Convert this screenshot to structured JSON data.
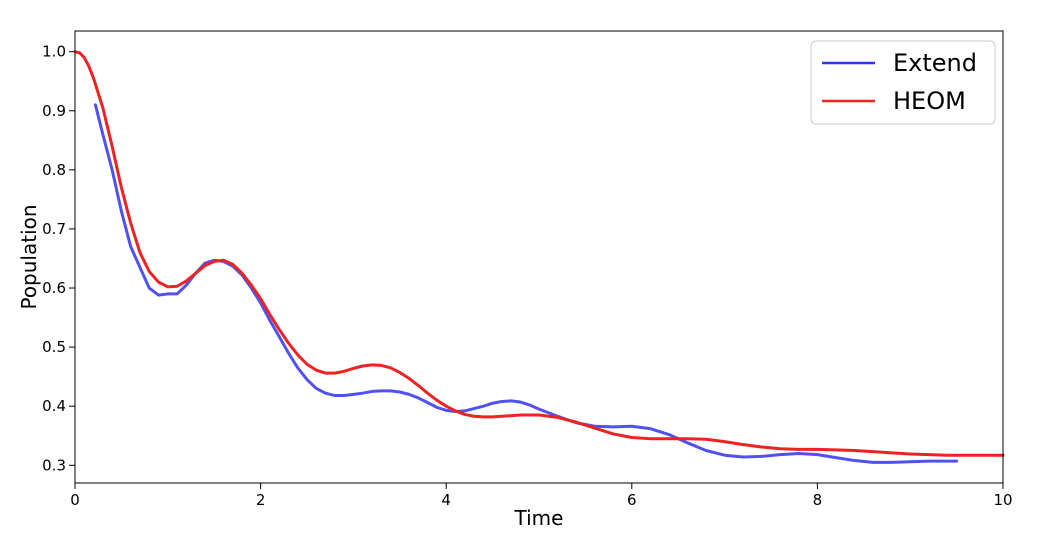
{
  "chart_data": {
    "type": "line",
    "title": "",
    "xlabel": "Time",
    "ylabel": "Population",
    "xlim": [
      0,
      10
    ],
    "ylim": [
      0.27,
      1.035
    ],
    "x_ticks": [
      0,
      2,
      4,
      6,
      8,
      10
    ],
    "x_tick_labels": [
      "0",
      "2",
      "4",
      "6",
      "8",
      "10"
    ],
    "y_ticks": [
      0.3,
      0.4,
      0.5,
      0.6,
      0.7,
      0.8,
      0.9,
      1.0
    ],
    "y_tick_labels": [
      "0.3",
      "0.4",
      "0.5",
      "0.6",
      "0.7",
      "0.8",
      "0.9",
      "1.0"
    ],
    "grid": false,
    "legend_position": "top-right",
    "series": [
      {
        "name": "Extend",
        "color": "#3333ee",
        "points": [
          [
            0.22,
            0.91
          ],
          [
            0.3,
            0.86
          ],
          [
            0.4,
            0.8
          ],
          [
            0.5,
            0.73
          ],
          [
            0.6,
            0.67
          ],
          [
            0.7,
            0.635
          ],
          [
            0.8,
            0.6
          ],
          [
            0.9,
            0.588
          ],
          [
            1.0,
            0.59
          ],
          [
            1.1,
            0.59
          ],
          [
            1.2,
            0.605
          ],
          [
            1.3,
            0.625
          ],
          [
            1.4,
            0.642
          ],
          [
            1.5,
            0.647
          ],
          [
            1.6,
            0.645
          ],
          [
            1.7,
            0.637
          ],
          [
            1.8,
            0.622
          ],
          [
            1.9,
            0.6
          ],
          [
            2.0,
            0.575
          ],
          [
            2.1,
            0.545
          ],
          [
            2.2,
            0.518
          ],
          [
            2.3,
            0.49
          ],
          [
            2.4,
            0.465
          ],
          [
            2.5,
            0.445
          ],
          [
            2.6,
            0.43
          ],
          [
            2.7,
            0.422
          ],
          [
            2.8,
            0.418
          ],
          [
            2.9,
            0.418
          ],
          [
            3.0,
            0.42
          ],
          [
            3.1,
            0.422
          ],
          [
            3.2,
            0.425
          ],
          [
            3.3,
            0.426
          ],
          [
            3.4,
            0.426
          ],
          [
            3.5,
            0.424
          ],
          [
            3.6,
            0.42
          ],
          [
            3.7,
            0.414
          ],
          [
            3.8,
            0.406
          ],
          [
            3.9,
            0.398
          ],
          [
            4.0,
            0.393
          ],
          [
            4.1,
            0.391
          ],
          [
            4.2,
            0.392
          ],
          [
            4.3,
            0.396
          ],
          [
            4.4,
            0.4
          ],
          [
            4.5,
            0.405
          ],
          [
            4.6,
            0.408
          ],
          [
            4.7,
            0.409
          ],
          [
            4.8,
            0.407
          ],
          [
            4.9,
            0.402
          ],
          [
            5.0,
            0.395
          ],
          [
            5.2,
            0.383
          ],
          [
            5.4,
            0.372
          ],
          [
            5.6,
            0.366
          ],
          [
            5.8,
            0.365
          ],
          [
            6.0,
            0.366
          ],
          [
            6.2,
            0.362
          ],
          [
            6.4,
            0.352
          ],
          [
            6.6,
            0.338
          ],
          [
            6.8,
            0.325
          ],
          [
            7.0,
            0.317
          ],
          [
            7.2,
            0.314
          ],
          [
            7.4,
            0.315
          ],
          [
            7.6,
            0.318
          ],
          [
            7.8,
            0.32
          ],
          [
            8.0,
            0.318
          ],
          [
            8.2,
            0.313
          ],
          [
            8.4,
            0.308
          ],
          [
            8.6,
            0.305
          ],
          [
            8.8,
            0.305
          ],
          [
            9.0,
            0.306
          ],
          [
            9.2,
            0.307
          ],
          [
            9.4,
            0.307
          ],
          [
            9.5,
            0.307
          ]
        ]
      },
      {
        "name": "HEOM",
        "color": "#ee2222",
        "points": [
          [
            0.0,
            1.0
          ],
          [
            0.05,
            0.998
          ],
          [
            0.1,
            0.99
          ],
          [
            0.15,
            0.975
          ],
          [
            0.2,
            0.955
          ],
          [
            0.3,
            0.905
          ],
          [
            0.4,
            0.84
          ],
          [
            0.5,
            0.77
          ],
          [
            0.6,
            0.71
          ],
          [
            0.7,
            0.66
          ],
          [
            0.8,
            0.628
          ],
          [
            0.9,
            0.61
          ],
          [
            1.0,
            0.602
          ],
          [
            1.1,
            0.603
          ],
          [
            1.2,
            0.612
          ],
          [
            1.3,
            0.625
          ],
          [
            1.4,
            0.638
          ],
          [
            1.5,
            0.645
          ],
          [
            1.6,
            0.647
          ],
          [
            1.7,
            0.64
          ],
          [
            1.8,
            0.625
          ],
          [
            1.9,
            0.605
          ],
          [
            2.0,
            0.582
          ],
          [
            2.1,
            0.555
          ],
          [
            2.2,
            0.53
          ],
          [
            2.3,
            0.507
          ],
          [
            2.4,
            0.487
          ],
          [
            2.5,
            0.471
          ],
          [
            2.6,
            0.461
          ],
          [
            2.7,
            0.456
          ],
          [
            2.8,
            0.456
          ],
          [
            2.9,
            0.459
          ],
          [
            3.0,
            0.464
          ],
          [
            3.1,
            0.468
          ],
          [
            3.2,
            0.47
          ],
          [
            3.3,
            0.469
          ],
          [
            3.4,
            0.465
          ],
          [
            3.5,
            0.457
          ],
          [
            3.6,
            0.447
          ],
          [
            3.7,
            0.435
          ],
          [
            3.8,
            0.422
          ],
          [
            3.9,
            0.41
          ],
          [
            4.0,
            0.4
          ],
          [
            4.1,
            0.392
          ],
          [
            4.2,
            0.386
          ],
          [
            4.3,
            0.383
          ],
          [
            4.4,
            0.382
          ],
          [
            4.5,
            0.382
          ],
          [
            4.6,
            0.383
          ],
          [
            4.8,
            0.385
          ],
          [
            5.0,
            0.385
          ],
          [
            5.2,
            0.381
          ],
          [
            5.4,
            0.373
          ],
          [
            5.6,
            0.363
          ],
          [
            5.8,
            0.353
          ],
          [
            6.0,
            0.347
          ],
          [
            6.2,
            0.345
          ],
          [
            6.4,
            0.345
          ],
          [
            6.6,
            0.345
          ],
          [
            6.8,
            0.344
          ],
          [
            7.0,
            0.34
          ],
          [
            7.2,
            0.335
          ],
          [
            7.4,
            0.331
          ],
          [
            7.6,
            0.328
          ],
          [
            7.8,
            0.327
          ],
          [
            8.0,
            0.327
          ],
          [
            8.2,
            0.326
          ],
          [
            8.4,
            0.325
          ],
          [
            8.6,
            0.323
          ],
          [
            8.8,
            0.321
          ],
          [
            9.0,
            0.319
          ],
          [
            9.2,
            0.318
          ],
          [
            9.4,
            0.317
          ],
          [
            9.6,
            0.317
          ],
          [
            9.8,
            0.317
          ],
          [
            10.0,
            0.317
          ]
        ]
      }
    ]
  }
}
